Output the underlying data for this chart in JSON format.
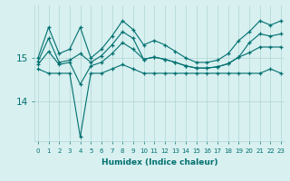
{
  "xlabel": "Humidex (Indice chaleur)",
  "x": [
    0,
    1,
    2,
    3,
    4,
    5,
    6,
    7,
    8,
    9,
    10,
    11,
    12,
    13,
    14,
    15,
    16,
    17,
    18,
    19,
    20,
    21,
    22,
    23
  ],
  "line1": [
    15.0,
    15.7,
    15.1,
    15.2,
    15.7,
    15.0,
    15.2,
    15.5,
    15.85,
    15.65,
    15.3,
    15.4,
    15.3,
    15.15,
    15.0,
    14.9,
    14.9,
    14.95,
    15.1,
    15.4,
    15.6,
    15.85,
    15.75,
    15.85
  ],
  "line2": [
    14.75,
    14.65,
    14.65,
    14.65,
    13.2,
    14.65,
    14.65,
    14.75,
    14.85,
    14.75,
    14.65,
    14.65,
    14.65,
    14.65,
    14.65,
    14.65,
    14.65,
    14.65,
    14.65,
    14.65,
    14.65,
    14.65,
    14.75,
    14.65
  ],
  "line3": [
    14.85,
    15.15,
    14.85,
    14.9,
    14.4,
    14.82,
    14.9,
    15.1,
    15.35,
    15.2,
    14.97,
    15.02,
    14.97,
    14.9,
    14.82,
    14.77,
    14.77,
    14.8,
    14.87,
    15.02,
    15.12,
    15.25,
    15.25,
    15.25
  ],
  "line4": [
    14.92,
    15.45,
    14.9,
    14.95,
    15.1,
    14.9,
    15.05,
    15.3,
    15.6,
    15.45,
    14.97,
    15.02,
    14.97,
    14.9,
    14.82,
    14.77,
    14.77,
    14.8,
    14.87,
    15.02,
    15.35,
    15.55,
    15.5,
    15.55
  ],
  "line_color": "#007070",
  "bg_color": "#d8f0f0",
  "grid_color": "#b0d4d4",
  "yticks": [
    14,
    15
  ],
  "ylim": [
    13.1,
    16.2
  ],
  "xlim": [
    -0.3,
    23.3
  ],
  "figwidth": 3.2,
  "figheight": 2.0,
  "dpi": 100
}
